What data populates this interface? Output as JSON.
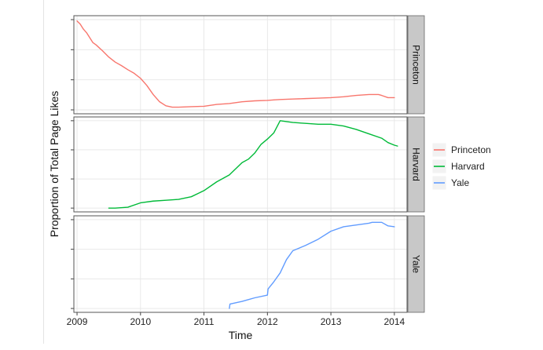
{
  "chart_data": {
    "type": "line",
    "xlabel": "Time",
    "ylabel": "Proportion of Total Page Likes",
    "xlim": [
      2008.95,
      2014.2
    ],
    "x_ticks": [
      2009,
      2010,
      2011,
      2012,
      2013,
      2014
    ],
    "x_tick_labels": [
      "2009",
      "2010",
      "2011",
      "2012",
      "2013",
      "2014"
    ],
    "grid": true,
    "legend_position": "right",
    "facets": [
      {
        "strip": "Princeton",
        "ylim": [
          0,
          1
        ],
        "series": [
          {
            "name": "Princeton",
            "color": "#F8766D",
            "x": [
              2009.0,
              2009.05,
              2009.1,
              2009.15,
              2009.2,
              2009.25,
              2009.3,
              2009.4,
              2009.5,
              2009.6,
              2009.7,
              2009.8,
              2009.9,
              2010.0,
              2010.1,
              2010.2,
              2010.3,
              2010.4,
              2010.5,
              2010.6,
              2010.8,
              2011.0,
              2011.2,
              2011.4,
              2011.6,
              2011.8,
              2012.0,
              2012.1,
              2012.2,
              2012.4,
              2012.6,
              2012.8,
              2013.0,
              2013.2,
              2013.4,
              2013.6,
              2013.75,
              2013.8,
              2013.9,
              2014.0
            ],
            "y": [
              0.985,
              0.95,
              0.895,
              0.855,
              0.8,
              0.745,
              0.72,
              0.655,
              0.585,
              0.53,
              0.49,
              0.445,
              0.405,
              0.35,
              0.27,
              0.17,
              0.09,
              0.045,
              0.03,
              0.03,
              0.035,
              0.04,
              0.06,
              0.07,
              0.09,
              0.1,
              0.105,
              0.11,
              0.115,
              0.12,
              0.125,
              0.13,
              0.135,
              0.145,
              0.16,
              0.17,
              0.17,
              0.16,
              0.135,
              0.135
            ]
          }
        ]
      },
      {
        "strip": "Harvard",
        "ylim": [
          0,
          1
        ],
        "series": [
          {
            "name": "Harvard",
            "color": "#00BA38",
            "x": [
              2009.5,
              2009.6,
              2009.8,
              2010.0,
              2010.2,
              2010.4,
              2010.6,
              2010.8,
              2011.0,
              2011.2,
              2011.4,
              2011.6,
              2011.7,
              2011.8,
              2011.9,
              2012.0,
              2012.1,
              2012.2,
              2012.3,
              2012.4,
              2012.6,
              2012.8,
              2013.0,
              2013.2,
              2013.4,
              2013.6,
              2013.8,
              2013.9,
              2014.0,
              2014.05
            ],
            "y": [
              0.0,
              0.0,
              0.01,
              0.06,
              0.08,
              0.09,
              0.1,
              0.13,
              0.2,
              0.3,
              0.38,
              0.52,
              0.56,
              0.63,
              0.73,
              0.79,
              0.86,
              1.0,
              0.99,
              0.98,
              0.97,
              0.96,
              0.96,
              0.94,
              0.9,
              0.85,
              0.8,
              0.75,
              0.72,
              0.71
            ]
          }
        ]
      },
      {
        "strip": "Yale",
        "ylim": [
          0,
          1
        ],
        "series": [
          {
            "name": "Yale",
            "color": "#619CFF",
            "x": [
              2011.4,
              2011.41,
              2011.6,
              2011.8,
              2012.0,
              2012.01,
              2012.1,
              2012.2,
              2012.3,
              2012.4,
              2012.6,
              2012.8,
              2013.0,
              2013.2,
              2013.4,
              2013.6,
              2013.65,
              2013.8,
              2013.9,
              2014.0
            ],
            "y": [
              0.0,
              0.05,
              0.08,
              0.12,
              0.15,
              0.22,
              0.3,
              0.4,
              0.55,
              0.65,
              0.71,
              0.78,
              0.87,
              0.92,
              0.94,
              0.96,
              0.97,
              0.97,
              0.93,
              0.92
            ]
          }
        ]
      }
    ],
    "legend": {
      "entries": [
        {
          "label": "Princeton",
          "color": "#F8766D"
        },
        {
          "label": "Harvard",
          "color": "#00BA38"
        },
        {
          "label": "Yale",
          "color": "#619CFF"
        }
      ]
    }
  }
}
